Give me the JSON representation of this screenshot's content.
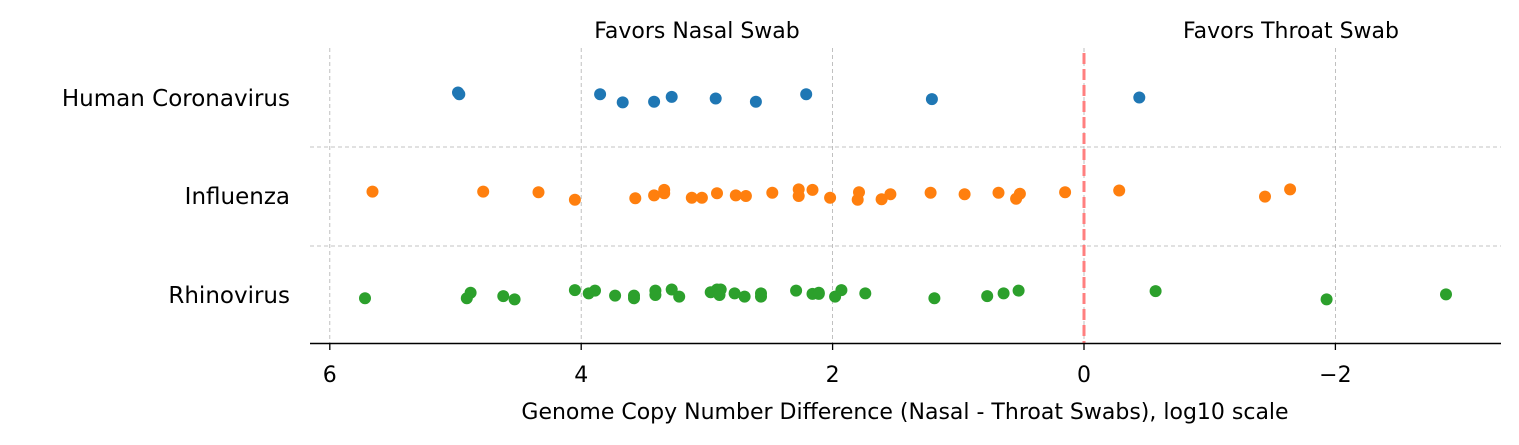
{
  "chart_data": {
    "type": "scatter",
    "title": "",
    "xlabel": "Genome Copy Number Difference (Nasal - Throat Swabs), log10 scale",
    "ylabel": "",
    "x_axis_inverted": true,
    "xlim": [
      6.2,
      -3.3
    ],
    "xticks": [
      6,
      4,
      2,
      0,
      -2
    ],
    "xtick_labels": [
      "6",
      "4",
      "2",
      "0",
      "−2"
    ],
    "grid": "dashed",
    "reference_line": {
      "x": 0,
      "style": "dashed",
      "color": "#ff7f7f"
    },
    "annotations": [
      {
        "text": "Favors Nasal Swab"
      },
      {
        "text": "Favors Throat Swab"
      }
    ],
    "categories": [
      "Human Coronavirus",
      "Influenza",
      "Rhinovirus"
    ],
    "series": [
      {
        "category": "Human Coronavirus",
        "color": "#1f77b4",
        "points": [
          {
            "x": 4.98,
            "jitter": 0.1
          },
          {
            "x": 4.97,
            "jitter": 0.07
          },
          {
            "x": 3.85,
            "jitter": 0.07
          },
          {
            "x": 3.67,
            "jitter": -0.08
          },
          {
            "x": 3.42,
            "jitter": -0.07
          },
          {
            "x": 3.28,
            "jitter": 0.02
          },
          {
            "x": 2.93,
            "jitter": -0.01
          },
          {
            "x": 2.61,
            "jitter": -0.07
          },
          {
            "x": 2.21,
            "jitter": 0.07
          },
          {
            "x": 1.21,
            "jitter": -0.02
          },
          {
            "x": -0.44,
            "jitter": 0.01
          }
        ]
      },
      {
        "category": "Influenza",
        "color": "#ff7f0e",
        "points": [
          {
            "x": 5.66,
            "jitter": 0.08
          },
          {
            "x": 4.78,
            "jitter": 0.08
          },
          {
            "x": 4.34,
            "jitter": 0.07
          },
          {
            "x": 4.05,
            "jitter": -0.07
          },
          {
            "x": 3.57,
            "jitter": -0.04
          },
          {
            "x": 3.42,
            "jitter": 0.01
          },
          {
            "x": 3.34,
            "jitter": 0.11
          },
          {
            "x": 3.34,
            "jitter": 0.05
          },
          {
            "x": 3.12,
            "jitter": -0.03
          },
          {
            "x": 3.04,
            "jitter": -0.03
          },
          {
            "x": 2.92,
            "jitter": 0.05
          },
          {
            "x": 2.77,
            "jitter": 0.01
          },
          {
            "x": 2.69,
            "jitter": 0.0
          },
          {
            "x": 2.48,
            "jitter": 0.06
          },
          {
            "x": 2.27,
            "jitter": 0.12
          },
          {
            "x": 2.27,
            "jitter": 0.0
          },
          {
            "x": 2.16,
            "jitter": 0.11
          },
          {
            "x": 2.02,
            "jitter": -0.03
          },
          {
            "x": 1.79,
            "jitter": 0.07
          },
          {
            "x": 1.8,
            "jitter": -0.07
          },
          {
            "x": 1.61,
            "jitter": -0.06
          },
          {
            "x": 1.54,
            "jitter": 0.03
          },
          {
            "x": 1.22,
            "jitter": 0.06
          },
          {
            "x": 0.95,
            "jitter": 0.03
          },
          {
            "x": 0.68,
            "jitter": 0.06
          },
          {
            "x": 0.51,
            "jitter": 0.04
          },
          {
            "x": 0.54,
            "jitter": -0.05
          },
          {
            "x": 0.15,
            "jitter": 0.07
          },
          {
            "x": -0.28,
            "jitter": 0.1
          },
          {
            "x": -1.44,
            "jitter": -0.01
          },
          {
            "x": -1.64,
            "jitter": 0.12
          }
        ]
      },
      {
        "category": "Rhinovirus",
        "color": "#2ca02c",
        "points": [
          {
            "x": 5.72,
            "jitter": -0.06
          },
          {
            "x": 4.88,
            "jitter": 0.04
          },
          {
            "x": 4.91,
            "jitter": -0.06
          },
          {
            "x": 4.62,
            "jitter": -0.02
          },
          {
            "x": 4.53,
            "jitter": -0.08
          },
          {
            "x": 4.05,
            "jitter": 0.09
          },
          {
            "x": 3.94,
            "jitter": 0.03
          },
          {
            "x": 3.89,
            "jitter": 0.08
          },
          {
            "x": 3.73,
            "jitter": -0.01
          },
          {
            "x": 3.58,
            "jitter": -0.06
          },
          {
            "x": 3.58,
            "jitter": -0.01
          },
          {
            "x": 3.41,
            "jitter": 0.08
          },
          {
            "x": 3.41,
            "jitter": 0.0
          },
          {
            "x": 3.28,
            "jitter": 0.1
          },
          {
            "x": 3.22,
            "jitter": -0.03
          },
          {
            "x": 2.97,
            "jitter": 0.05
          },
          {
            "x": 2.92,
            "jitter": 0.1
          },
          {
            "x": 2.89,
            "jitter": 0.1
          },
          {
            "x": 2.9,
            "jitter": 0.0
          },
          {
            "x": 2.78,
            "jitter": 0.03
          },
          {
            "x": 2.7,
            "jitter": -0.03
          },
          {
            "x": 2.57,
            "jitter": 0.03
          },
          {
            "x": 2.57,
            "jitter": -0.03
          },
          {
            "x": 2.29,
            "jitter": 0.08
          },
          {
            "x": 2.16,
            "jitter": 0.02
          },
          {
            "x": 2.11,
            "jitter": 0.04
          },
          {
            "x": 2.11,
            "jitter": 0.02
          },
          {
            "x": 1.98,
            "jitter": -0.03
          },
          {
            "x": 1.93,
            "jitter": 0.09
          },
          {
            "x": 1.74,
            "jitter": 0.03
          },
          {
            "x": 1.19,
            "jitter": -0.06
          },
          {
            "x": 0.77,
            "jitter": -0.02
          },
          {
            "x": 0.64,
            "jitter": 0.03
          },
          {
            "x": 0.52,
            "jitter": 0.08
          },
          {
            "x": -0.57,
            "jitter": 0.07
          },
          {
            "x": -1.93,
            "jitter": -0.08
          },
          {
            "x": -2.88,
            "jitter": 0.01
          }
        ]
      }
    ]
  }
}
